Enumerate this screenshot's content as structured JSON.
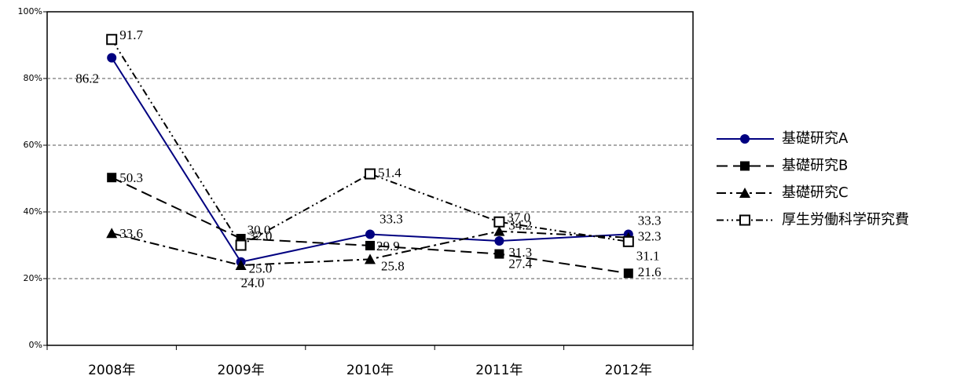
{
  "chart_data": {
    "type": "line",
    "categories": [
      "2008年",
      "2009年",
      "2010年",
      "2011年",
      "2012年"
    ],
    "ylim": [
      0,
      100
    ],
    "yticks": [
      {
        "value": 0,
        "label": "0%"
      },
      {
        "value": 20,
        "label": "20%"
      },
      {
        "value": 40,
        "label": "40%"
      },
      {
        "value": 60,
        "label": "60%"
      },
      {
        "value": 80,
        "label": "80%"
      },
      {
        "value": 100,
        "label": "100%"
      }
    ],
    "grid": true,
    "legend": "right",
    "series": [
      {
        "name": "基礎研究A",
        "color": "#000080",
        "marker": "circle",
        "dash": "solid",
        "values": [
          86.2,
          25.0,
          33.3,
          31.3,
          33.3
        ],
        "value_labels": [
          "86.2",
          "25.0",
          "33.3",
          "31.3",
          "33.3"
        ]
      },
      {
        "name": "基礎研究B",
        "color": "#000000",
        "marker": "square",
        "dash": "dashed",
        "values": [
          50.3,
          32.0,
          29.9,
          27.4,
          21.6
        ],
        "value_labels": [
          "50.3",
          "32.0",
          "29.9",
          "27.4",
          "21.6"
        ]
      },
      {
        "name": "基礎研究C",
        "color": "#000000",
        "marker": "triangle",
        "dash": "dashdot",
        "values": [
          33.6,
          24.0,
          25.8,
          34.2,
          32.3
        ],
        "value_labels": [
          "33.6",
          "24.0",
          "25.8",
          "34.2",
          "32.3"
        ]
      },
      {
        "name": "厚生労働科学研究費",
        "color": "#000000",
        "marker": "open-square",
        "dash": "dashdotdot",
        "values": [
          91.7,
          30.0,
          51.4,
          37.0,
          31.1
        ],
        "value_labels": [
          "91.7",
          "30.0",
          "51.4",
          "37.0",
          "31.1"
        ]
      }
    ]
  }
}
